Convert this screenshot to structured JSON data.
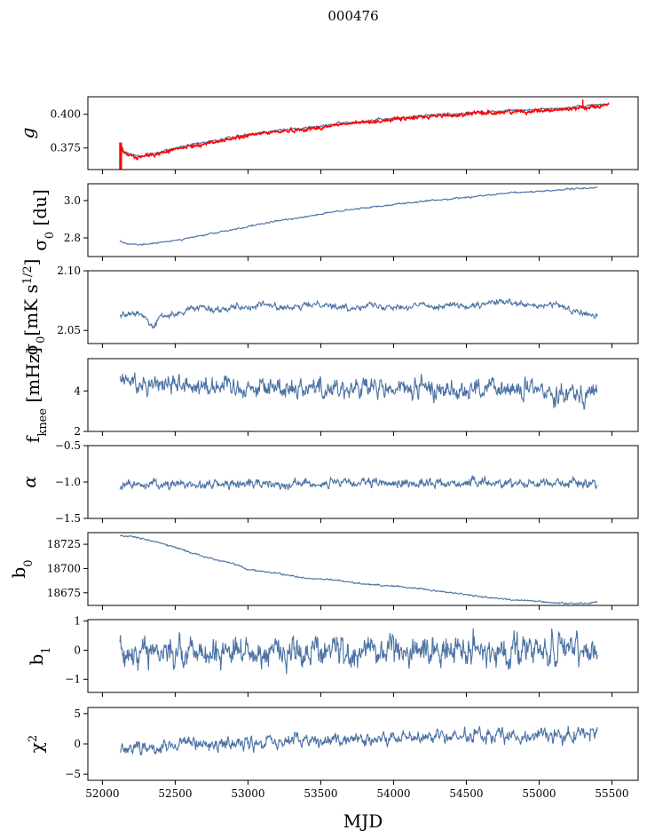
{
  "figure": {
    "suptitle": "000476",
    "xlabel": "MJD",
    "x_ticks": [
      52000,
      52500,
      53000,
      53500,
      54000,
      54500,
      55000,
      55500
    ]
  },
  "chart_data": [
    {
      "type": "line",
      "id": "g",
      "ylabel": "g",
      "xlim": [
        51900,
        55680
      ],
      "ylim": [
        0.359,
        0.413
      ],
      "yticks": [
        0.375,
        0.4
      ],
      "ytick_labels": [
        "0.375",
        "0.400"
      ],
      "series": [
        {
          "color": "#4c72a4",
          "noise": 0.0006,
          "x": [
            52120,
            52150,
            52200,
            52250,
            52300,
            52400,
            52500,
            52600,
            52700,
            52800,
            52900,
            53000,
            53100,
            53200,
            53300,
            53400,
            53500,
            53600,
            53700,
            53800,
            53900,
            54000,
            54100,
            54200,
            54300,
            54400,
            54500,
            54600,
            54700,
            54800,
            54900,
            55000,
            55100,
            55200,
            55300,
            55400,
            55480
          ],
          "y": [
            0.378,
            0.372,
            0.37,
            0.369,
            0.37,
            0.372,
            0.375,
            0.377,
            0.379,
            0.381,
            0.383,
            0.385,
            0.387,
            0.388,
            0.389,
            0.39,
            0.391,
            0.393,
            0.394,
            0.395,
            0.396,
            0.397,
            0.398,
            0.399,
            0.4,
            0.4,
            0.401,
            0.402,
            0.402,
            0.403,
            0.403,
            0.404,
            0.404,
            0.405,
            0.406,
            0.407,
            0.408
          ]
        },
        {
          "color": "#ff0000",
          "noise": 0.0009,
          "x": [
            52120,
            52150,
            52200,
            52250,
            52300,
            52400,
            52500,
            52600,
            52700,
            52800,
            52900,
            53000,
            53100,
            53200,
            53300,
            53400,
            53500,
            53600,
            53700,
            53800,
            53900,
            54000,
            54100,
            54200,
            54300,
            54400,
            54500,
            54600,
            54700,
            54800,
            54900,
            55000,
            55100,
            55200,
            55300,
            55400,
            55480
          ],
          "y": [
            0.377,
            0.371,
            0.369,
            0.368,
            0.369,
            0.371,
            0.374,
            0.376,
            0.378,
            0.38,
            0.382,
            0.384,
            0.386,
            0.387,
            0.388,
            0.389,
            0.39,
            0.392,
            0.393,
            0.394,
            0.395,
            0.396,
            0.397,
            0.398,
            0.399,
            0.399,
            0.4,
            0.401,
            0.401,
            0.402,
            0.402,
            0.403,
            0.403,
            0.404,
            0.405,
            0.406,
            0.407
          ]
        }
      ]
    },
    {
      "type": "line",
      "id": "sigma0_du",
      "ylabel": "σ₀ [du]",
      "xlim": [
        51900,
        55680
      ],
      "ylim": [
        2.7,
        3.09
      ],
      "yticks": [
        2.8,
        3.0
      ],
      "ytick_labels": [
        "2.8",
        "3.0"
      ],
      "series": [
        {
          "color": "#4c72a4",
          "noise": 0.003,
          "x": [
            52120,
            52180,
            52250,
            52300,
            52400,
            52600,
            52800,
            53000,
            53200,
            53400,
            53600,
            53800,
            54000,
            54200,
            54400,
            54600,
            54800,
            55000,
            55200,
            55400
          ],
          "y": [
            2.785,
            2.765,
            2.762,
            2.766,
            2.775,
            2.8,
            2.83,
            2.86,
            2.89,
            2.915,
            2.94,
            2.96,
            2.98,
            2.995,
            3.01,
            3.025,
            3.04,
            3.05,
            3.06,
            3.07
          ]
        }
      ]
    },
    {
      "type": "line",
      "id": "sigma0_mk",
      "ylabel": "σ₀ [mK s^1/2]",
      "xlim": [
        51900,
        55680
      ],
      "ylim": [
        2.039,
        2.1
      ],
      "yticks": [
        2.05,
        2.1
      ],
      "ytick_labels": [
        "2.05",
        "2.10"
      ],
      "series": [
        {
          "color": "#4c72a4",
          "noise": 0.0018,
          "x": [
            52120,
            52200,
            52250,
            52300,
            52350,
            52400,
            52500,
            52600,
            52700,
            52800,
            52900,
            53000,
            53100,
            53200,
            53300,
            53400,
            53500,
            53600,
            53700,
            53800,
            53900,
            54000,
            54100,
            54200,
            54300,
            54400,
            54500,
            54600,
            54700,
            54800,
            54900,
            55000,
            55100,
            55200,
            55300,
            55400
          ],
          "y": [
            2.064,
            2.063,
            2.064,
            2.06,
            2.052,
            2.062,
            2.063,
            2.068,
            2.07,
            2.067,
            2.071,
            2.069,
            2.072,
            2.07,
            2.068,
            2.071,
            2.073,
            2.07,
            2.068,
            2.072,
            2.07,
            2.071,
            2.069,
            2.072,
            2.07,
            2.072,
            2.069,
            2.071,
            2.074,
            2.073,
            2.071,
            2.07,
            2.072,
            2.068,
            2.064,
            2.062
          ]
        }
      ]
    },
    {
      "type": "line",
      "id": "fknee",
      "ylabel": "f_knee [mHz]",
      "xlim": [
        51900,
        55680
      ],
      "ylim": [
        2.0,
        5.6
      ],
      "yticks": [
        2,
        4
      ],
      "ytick_labels": [
        "2",
        "4"
      ],
      "series": [
        {
          "color": "#4c72a4",
          "noise": 0.38,
          "x": [
            52120,
            52400,
            52700,
            53000,
            53300,
            53600,
            53900,
            54200,
            54500,
            54800,
            55100,
            55400
          ],
          "y": [
            4.5,
            4.4,
            4.3,
            4.2,
            4.2,
            4.15,
            4.1,
            4.1,
            4.1,
            4.05,
            4.0,
            3.9
          ]
        }
      ]
    },
    {
      "type": "line",
      "id": "alpha",
      "ylabel": "α",
      "xlim": [
        51900,
        55680
      ],
      "ylim": [
        -1.5,
        -0.5
      ],
      "yticks": [
        -1.5,
        -1.0,
        -0.5
      ],
      "ytick_labels": [
        "−1.5",
        "−1.0",
        "−0.5"
      ],
      "series": [
        {
          "color": "#4c72a4",
          "noise": 0.045,
          "x": [
            52120,
            52800,
            53400,
            54000,
            54600,
            55200,
            55400
          ],
          "y": [
            -1.04,
            -1.03,
            -1.02,
            -1.02,
            -1.01,
            -1.01,
            -1.02
          ]
        }
      ]
    },
    {
      "type": "line",
      "id": "b0",
      "ylabel": "b₀",
      "xlim": [
        51900,
        55680
      ],
      "ylim": [
        18662,
        18737
      ],
      "yticks": [
        18675,
        18700,
        18725
      ],
      "ytick_labels": [
        "18675",
        "18700",
        "18725"
      ],
      "series": [
        {
          "color": "#4c72a4",
          "noise": 0.6,
          "x": [
            52120,
            52200,
            52300,
            52500,
            52700,
            52900,
            53000,
            53200,
            53400,
            53600,
            53800,
            54000,
            54200,
            54400,
            54600,
            54800,
            55000,
            55200,
            55300,
            55400
          ],
          "y": [
            18734,
            18733,
            18730,
            18722,
            18712,
            18705,
            18699,
            18695,
            18690,
            18688,
            18684,
            18682,
            18679,
            18675,
            18671,
            18668,
            18666,
            18664,
            18664,
            18665
          ]
        }
      ]
    },
    {
      "type": "line",
      "id": "b1",
      "ylabel": "b₁",
      "xlim": [
        51900,
        55680
      ],
      "ylim": [
        -1.45,
        1.05
      ],
      "yticks": [
        -1,
        0,
        1
      ],
      "ytick_labels": [
        "−1",
        "0",
        "1"
      ],
      "series": [
        {
          "color": "#4c72a4",
          "noise": 0.38,
          "x": [
            52120,
            52800,
            53500,
            54200,
            54900,
            55400
          ],
          "y": [
            0.0,
            -0.05,
            0.0,
            0.0,
            0.0,
            -0.05
          ]
        }
      ]
    },
    {
      "type": "line",
      "id": "chi2",
      "ylabel": "χ²",
      "xlim": [
        51900,
        55680
      ],
      "ylim": [
        -6,
        6
      ],
      "yticks": [
        -5,
        0,
        5
      ],
      "ytick_labels": [
        "−5",
        "0",
        "5"
      ],
      "series": [
        {
          "color": "#4c72a4",
          "noise": 0.85,
          "x": [
            52120,
            52400,
            52800,
            53200,
            53600,
            54000,
            54400,
            54800,
            55200,
            55400
          ],
          "y": [
            -0.6,
            -0.4,
            -0.1,
            0.3,
            0.6,
            0.9,
            1.2,
            1.4,
            1.6,
            1.7
          ]
        }
      ]
    }
  ]
}
